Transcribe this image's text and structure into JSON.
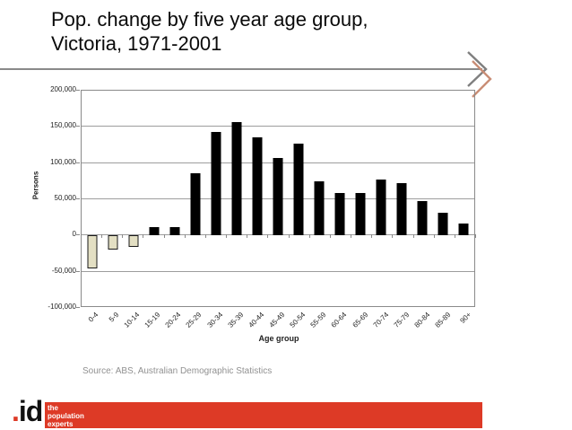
{
  "slide": {
    "title_line1": "Pop. change by five year age group,",
    "title_line2": "Victoria, 1971-2001",
    "source": "Source: ABS, Australian Demographic Statistics",
    "logo": {
      "dot": ".",
      "name": "id",
      "tagline": [
        "the",
        "population",
        "experts"
      ]
    },
    "colors": {
      "accent_red": "#dd3a26",
      "arrow_gray": "#7f7f7f",
      "arrow_salmon": "#c98d75",
      "divider_gray": "#8a8a8a",
      "bar_positive": "#000000",
      "bar_negative_fill": "#e3dfc3",
      "gridline": "#9d9d9d",
      "source_text": "#919191"
    }
  },
  "chart_data": {
    "type": "bar",
    "title": "",
    "xlabel": "Age group",
    "ylabel": "Persons",
    "categories": [
      "0-4",
      "5-9",
      "10-14",
      "15-19",
      "20-24",
      "25-29",
      "30-34",
      "35-39",
      "40-44",
      "45-49",
      "50-54",
      "55-59",
      "60-64",
      "65-69",
      "70-74",
      "75-79",
      "80-84",
      "85-89",
      "90+"
    ],
    "values": [
      -45000,
      -20000,
      -16000,
      11000,
      12000,
      86000,
      143000,
      157000,
      135000,
      107000,
      127000,
      75000,
      59000,
      59000,
      77000,
      72000,
      48000,
      31000,
      16000
    ],
    "ylim": [
      -100000,
      200000
    ],
    "ytick_interval": 50000,
    "ytick_labels": [
      "200,000",
      "150,000",
      "100,000",
      "50,000",
      "0",
      "-50,000",
      "-100,000"
    ],
    "ytick_values": [
      200000,
      150000,
      100000,
      50000,
      0,
      -50000,
      -100000
    ],
    "grid": true,
    "legend": "none",
    "bar_style_note": "negative bars cream with black outline, positive bars solid black"
  }
}
